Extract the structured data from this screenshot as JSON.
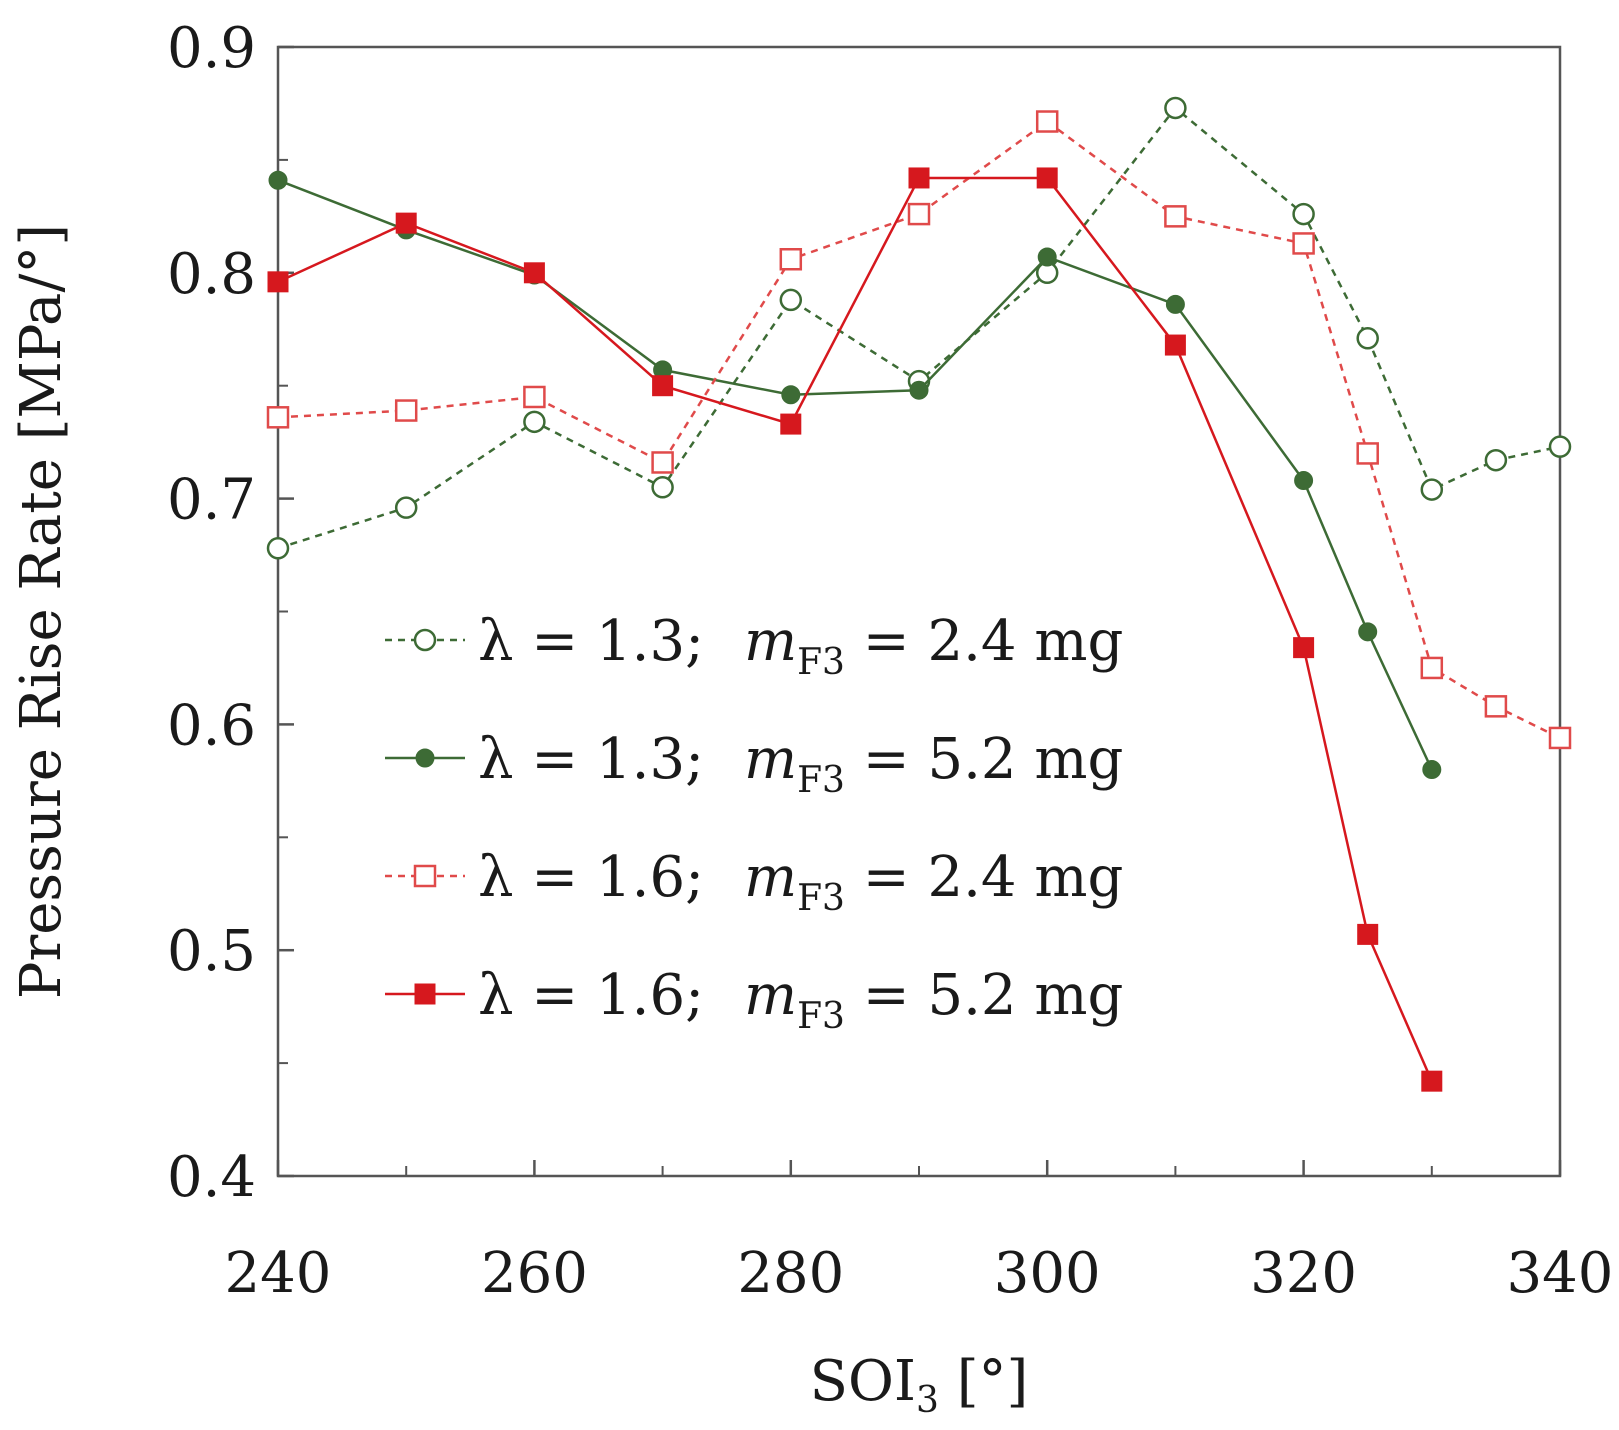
{
  "chart_data": {
    "type": "line",
    "title": "",
    "xlabel": "SOI",
    "xlabel_sub": "3",
    "xlabel_unit": " [°]",
    "ylabel": "Pressure Rise Rate  [MPa/°]",
    "xlim": [
      240,
      340
    ],
    "ylim": [
      0.4,
      0.9
    ],
    "xticks": [
      240,
      260,
      280,
      300,
      320,
      340
    ],
    "xtick_labels": [
      "240",
      "260",
      "280",
      "300",
      "320",
      "340"
    ],
    "yticks": [
      0.4,
      0.5,
      0.6,
      0.7,
      0.8,
      0.9
    ],
    "ytick_labels": [
      "0.4",
      "0.5",
      "0.6",
      "0.7",
      "0.8",
      "0.9"
    ],
    "minor_xticks": [
      250,
      270,
      290,
      310,
      330
    ],
    "minor_yticks": [
      0.45,
      0.55,
      0.65,
      0.75,
      0.85
    ],
    "grid": false,
    "legend_position": "center-left",
    "series": [
      {
        "name": "λ = 1.3;  m_F3 = 2.4 mg",
        "legend_lambda": "λ = 1.3;",
        "legend_m": "m",
        "legend_sub": "F3",
        "legend_value": " = 2.4 mg",
        "color": "#3d6b35",
        "marker": "circle-open",
        "dashed": true,
        "x": [
          240,
          250,
          260,
          270,
          280,
          290,
          300,
          310,
          320,
          325,
          330,
          335,
          340
        ],
        "y": [
          0.678,
          0.696,
          0.734,
          0.705,
          0.788,
          0.752,
          0.8,
          0.873,
          0.826,
          0.771,
          0.704,
          0.717,
          0.723
        ]
      },
      {
        "name": "λ = 1.3;  m_F3 = 5.2 mg",
        "legend_lambda": "λ = 1.3;",
        "legend_m": "m",
        "legend_sub": "F3",
        "legend_value": " = 5.2 mg",
        "color": "#3d6b35",
        "marker": "circle-filled",
        "dashed": false,
        "x": [
          240,
          250,
          260,
          270,
          280,
          290,
          300,
          310,
          320,
          325,
          330
        ],
        "y": [
          0.841,
          0.819,
          0.799,
          0.757,
          0.746,
          0.748,
          0.807,
          0.786,
          0.708,
          0.641,
          0.58
        ]
      },
      {
        "name": "λ = 1.6;  m_F3 = 2.4 mg",
        "legend_lambda": "λ = 1.6;",
        "legend_m": "m",
        "legend_sub": "F3",
        "legend_value": " = 2.4 mg",
        "color": "#e04a4a",
        "marker": "square-open",
        "dashed": true,
        "x": [
          240,
          250,
          260,
          270,
          280,
          290,
          300,
          310,
          320,
          325,
          330,
          335,
          340
        ],
        "y": [
          0.736,
          0.739,
          0.745,
          0.716,
          0.806,
          0.826,
          0.867,
          0.825,
          0.813,
          0.72,
          0.625,
          0.608,
          0.594
        ]
      },
      {
        "name": "λ = 1.6;  m_F3 = 5.2 mg",
        "legend_lambda": "λ = 1.6;",
        "legend_m": "m",
        "legend_sub": "F3",
        "legend_value": " = 5.2 mg",
        "color": "#d6181e",
        "marker": "square-filled",
        "dashed": false,
        "x": [
          240,
          250,
          260,
          270,
          280,
          290,
          300,
          310,
          320,
          325,
          330
        ],
        "y": [
          0.796,
          0.822,
          0.8,
          0.75,
          0.733,
          0.842,
          0.842,
          0.768,
          0.634,
          0.507,
          0.442
        ]
      }
    ]
  }
}
